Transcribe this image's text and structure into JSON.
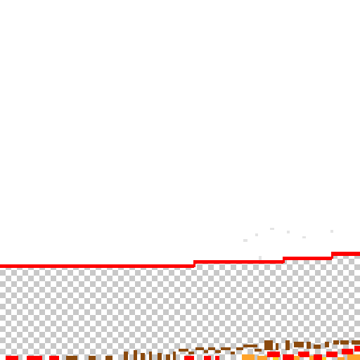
{
  "colors": {
    "background": "#ffffff",
    "checker_light": "#ffffff",
    "checker_dark": "#c8c8c8",
    "outline": "#ff0000",
    "brown": "#8b4a0e",
    "orange": "#ffa32a",
    "yellow": "#ffd21f",
    "faint": "#e2e2e2"
  },
  "icons": {
    "transparency-pattern": "checkerboard",
    "outline": "stepped-red-line"
  }
}
